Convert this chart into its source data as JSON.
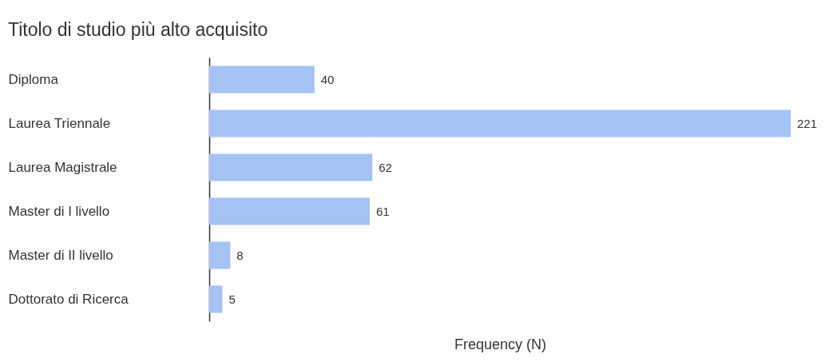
{
  "chart_data": {
    "type": "bar",
    "orientation": "horizontal",
    "title": "Titolo di studio più alto acquisito",
    "xlabel": "Frequency (N)",
    "categories": [
      "Diploma",
      "Laurea Triennale",
      "Laurea Magistrale",
      "Master di I livello",
      "Master di II livello",
      "Dottorato di Ricerca"
    ],
    "values": [
      40,
      221,
      62,
      61,
      8,
      5
    ],
    "color": "#a4c2f4",
    "data_labels": true
  }
}
